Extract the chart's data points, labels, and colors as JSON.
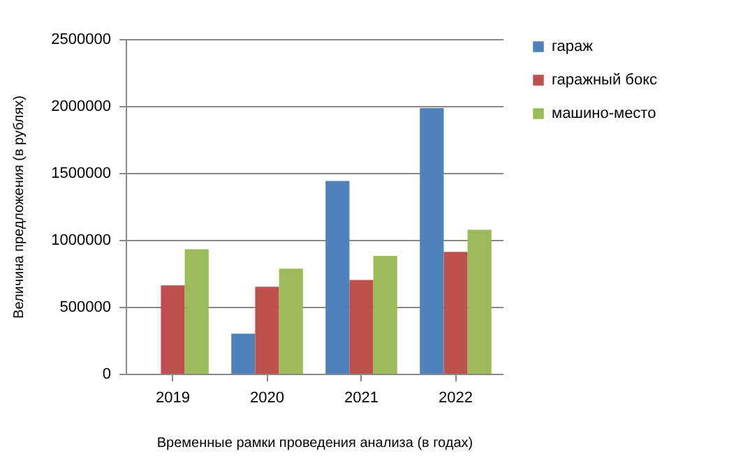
{
  "chart_data": {
    "type": "bar",
    "xlabel": "Временные рамки проведения анализа (в годах)",
    "ylabel": "Величина предложения (в рублях)",
    "categories": [
      "2019",
      "2020",
      "2021",
      "2022"
    ],
    "series": [
      {
        "name": "гараж",
        "color": "#4f81bd",
        "values": [
          null,
          300000,
          1440000,
          1985000
        ]
      },
      {
        "name": "гаражный бокс",
        "color": "#c0504d",
        "values": [
          660000,
          650000,
          700000,
          910000
        ]
      },
      {
        "name": "машино-место",
        "color": "#9bbb59",
        "values": [
          930000,
          785000,
          880000,
          1075000
        ]
      }
    ],
    "ylim": [
      0,
      2500000
    ],
    "yticks": [
      0,
      500000,
      1000000,
      1500000,
      2000000,
      2500000
    ],
    "grid": "y",
    "legend": "right"
  }
}
